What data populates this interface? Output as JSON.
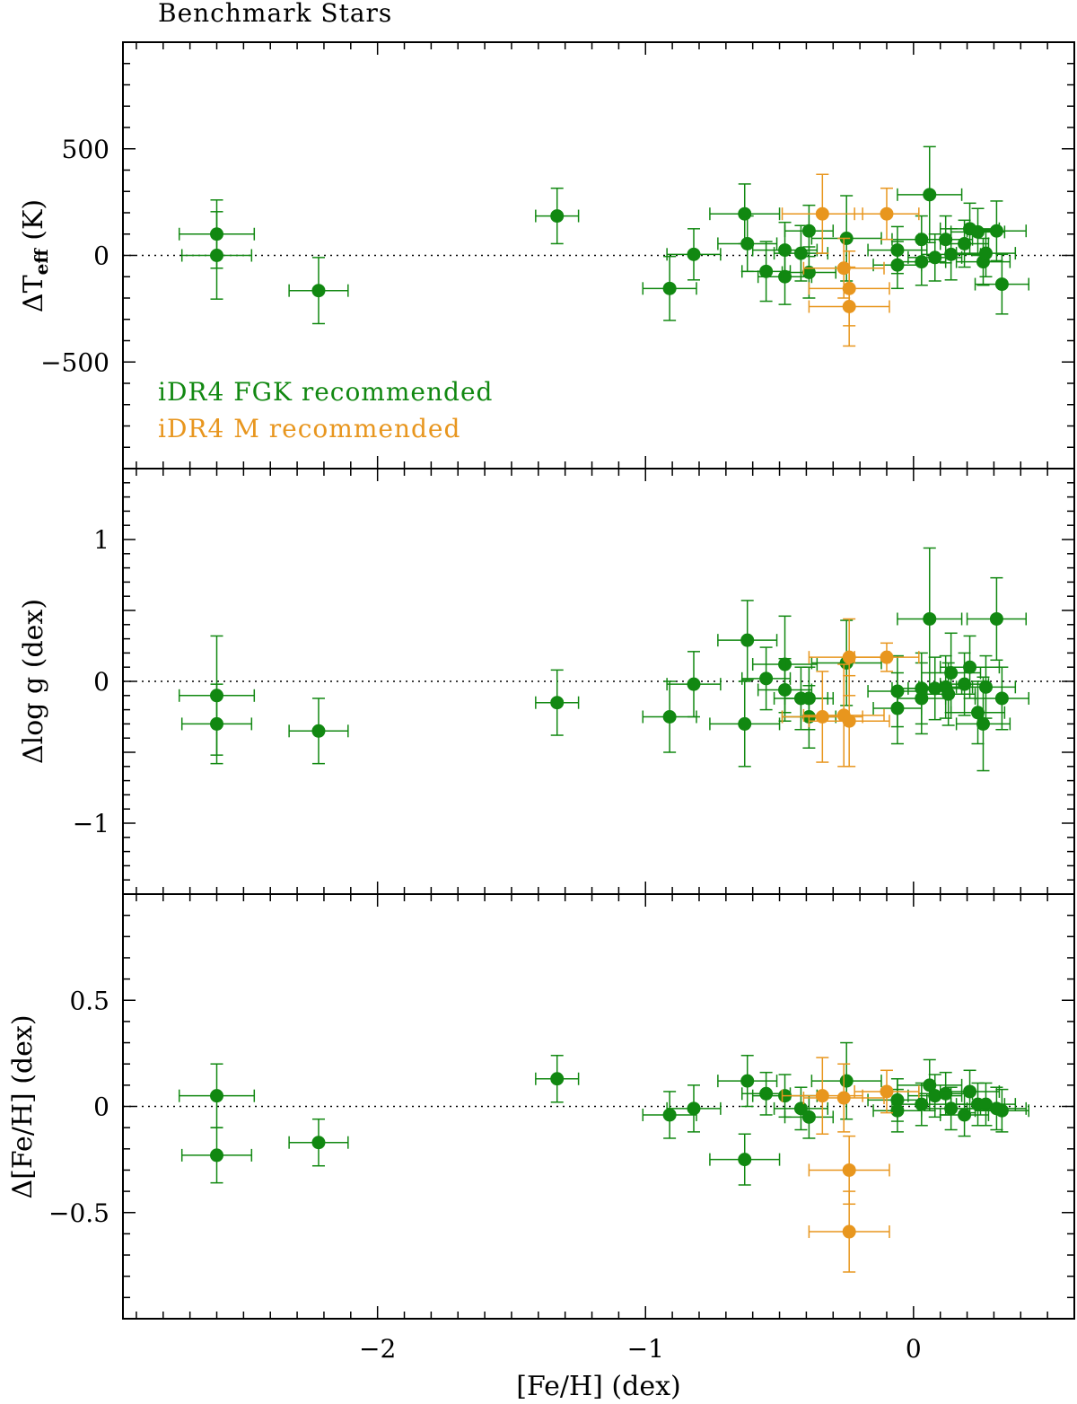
{
  "chart_data": {
    "type": "scatter",
    "title": "Benchmark Stars",
    "xlabel": "[Fe/H] (dex)",
    "xlim": [
      -2.95,
      0.6
    ],
    "x_ticks": [
      -2,
      -1,
      0
    ],
    "x_tick_labels": [
      "−2",
      "−1",
      "0"
    ],
    "colors": {
      "fgk": "#118811",
      "m": "#e8961e",
      "zero_line": "#000000"
    },
    "legend": {
      "placement": "lower-left of top panel",
      "entries": [
        {
          "key": "fgk",
          "label": "iDR4 FGK recommended"
        },
        {
          "key": "m",
          "label": "iDR4 M recommended"
        }
      ]
    },
    "panels": [
      {
        "id": "teff",
        "ylabel_main": "ΔT",
        "ylabel_sub": "eff",
        "ylabel_unit": " (K)",
        "ylim": [
          -1000,
          1000
        ],
        "y_ticks": [
          500,
          0,
          -500
        ],
        "y_tick_labels": [
          "500",
          "0",
          "−500"
        ],
        "series": [
          {
            "name": "iDR4 FGK recommended",
            "key": "fgk",
            "points": [
              [
                -2.6,
                100,
                0.14,
                160
              ],
              [
                -2.6,
                0,
                0.13,
                205
              ],
              [
                -2.22,
                -165,
                0.11,
                155
              ],
              [
                -1.33,
                185,
                0.08,
                130
              ],
              [
                -0.91,
                -155,
                0.1,
                150
              ],
              [
                -0.82,
                5,
                0.1,
                120
              ],
              [
                -0.63,
                195,
                0.13,
                140
              ],
              [
                -0.62,
                55,
                0.11,
                130
              ],
              [
                -0.55,
                -75,
                0.09,
                140
              ],
              [
                -0.48,
                25,
                0.12,
                130
              ],
              [
                -0.48,
                -100,
                0.1,
                130
              ],
              [
                -0.42,
                10,
                0.1,
                130
              ],
              [
                -0.39,
                115,
                0.09,
                120
              ],
              [
                -0.39,
                -80,
                0.1,
                120
              ],
              [
                -0.25,
                80,
                0.13,
                200
              ],
              [
                -0.06,
                25,
                0.11,
                110
              ],
              [
                -0.06,
                -45,
                0.09,
                110
              ],
              [
                0.03,
                75,
                0.11,
                110
              ],
              [
                0.03,
                -30,
                0.09,
                110
              ],
              [
                0.06,
                285,
                0.12,
                225
              ],
              [
                0.08,
                -10,
                0.1,
                110
              ],
              [
                0.12,
                75,
                0.1,
                110
              ],
              [
                0.14,
                5,
                0.11,
                120
              ],
              [
                0.19,
                55,
                0.09,
                110
              ],
              [
                0.21,
                125,
                0.11,
                120
              ],
              [
                0.24,
                110,
                0.1,
                110
              ],
              [
                0.26,
                -30,
                0.1,
                110
              ],
              [
                0.27,
                10,
                0.11,
                110
              ],
              [
                0.31,
                115,
                0.11,
                140
              ],
              [
                0.33,
                -135,
                0.1,
                140
              ]
            ]
          },
          {
            "name": "iDR4 M recommended",
            "key": "m",
            "points": [
              [
                -0.34,
                195,
                0.15,
                185
              ],
              [
                -0.1,
                195,
                0.12,
                120
              ],
              [
                -0.26,
                -60,
                0.15,
                140
              ],
              [
                -0.24,
                -155,
                0.15,
                175
              ],
              [
                -0.24,
                -240,
                0.15,
                185
              ]
            ]
          }
        ]
      },
      {
        "id": "logg",
        "ylabel_main": "Δlog g (dex)",
        "ylim": [
          -1.5,
          1.5
        ],
        "y_ticks": [
          1,
          0,
          -1
        ],
        "y_tick_labels": [
          "1",
          "0",
          "−1"
        ],
        "series": [
          {
            "name": "iDR4 FGK recommended",
            "key": "fgk",
            "points": [
              [
                -2.6,
                -0.1,
                0.14,
                0.42
              ],
              [
                -2.6,
                -0.3,
                0.13,
                0.28
              ],
              [
                -2.22,
                -0.35,
                0.11,
                0.23
              ],
              [
                -1.33,
                -0.15,
                0.08,
                0.23
              ],
              [
                -0.91,
                -0.25,
                0.1,
                0.25
              ],
              [
                -0.82,
                -0.02,
                0.1,
                0.23
              ],
              [
                -0.63,
                -0.3,
                0.13,
                0.3
              ],
              [
                -0.62,
                0.29,
                0.11,
                0.28
              ],
              [
                -0.55,
                0.02,
                0.09,
                0.22
              ],
              [
                -0.48,
                0.12,
                0.12,
                0.34
              ],
              [
                -0.48,
                -0.06,
                0.1,
                0.22
              ],
              [
                -0.42,
                -0.12,
                0.1,
                0.22
              ],
              [
                -0.39,
                -0.12,
                0.09,
                0.22
              ],
              [
                -0.39,
                -0.25,
                0.1,
                0.22
              ],
              [
                -0.25,
                0.13,
                0.13,
                0.3
              ],
              [
                -0.06,
                -0.07,
                0.11,
                0.25
              ],
              [
                -0.06,
                -0.19,
                0.09,
                0.25
              ],
              [
                0.03,
                -0.05,
                0.11,
                0.25
              ],
              [
                0.03,
                -0.12,
                0.09,
                0.25
              ],
              [
                0.06,
                0.44,
                0.12,
                0.5
              ],
              [
                0.08,
                -0.05,
                0.1,
                0.22
              ],
              [
                0.12,
                -0.04,
                0.1,
                0.22
              ],
              [
                0.14,
                0.06,
                0.11,
                0.28
              ],
              [
                0.19,
                -0.02,
                0.09,
                0.22
              ],
              [
                0.21,
                0.1,
                0.11,
                0.22
              ],
              [
                0.24,
                -0.22,
                0.1,
                0.22
              ],
              [
                0.26,
                -0.3,
                0.1,
                0.33
              ],
              [
                0.27,
                -0.04,
                0.11,
                0.22
              ],
              [
                0.31,
                0.44,
                0.11,
                0.29
              ],
              [
                0.33,
                -0.12,
                0.1,
                0.22
              ],
              [
                0.13,
                -0.09,
                0.1,
                0.22
              ]
            ]
          },
          {
            "name": "iDR4 M recommended",
            "key": "m",
            "points": [
              [
                -0.34,
                -0.25,
                0.15,
                0.32
              ],
              [
                -0.26,
                -0.24,
                0.15,
                0.36
              ],
              [
                -0.24,
                -0.28,
                0.15,
                0.32
              ],
              [
                -0.24,
                0.17,
                0.15,
                0.27
              ],
              [
                -0.1,
                0.17,
                0.12,
                0.1
              ]
            ]
          }
        ]
      },
      {
        "id": "feh",
        "ylabel_main": "Δ[Fe/H] (dex)",
        "ylim": [
          -1.0,
          1.0
        ],
        "y_ticks": [
          0.5,
          0,
          -0.5
        ],
        "y_tick_labels": [
          "0.5",
          "0",
          "−0.5"
        ],
        "series": [
          {
            "name": "iDR4 FGK recommended",
            "key": "fgk",
            "points": [
              [
                -2.6,
                0.05,
                0.14,
                0.15
              ],
              [
                -2.6,
                -0.23,
                0.13,
                0.13
              ],
              [
                -2.22,
                -0.17,
                0.11,
                0.11
              ],
              [
                -1.33,
                0.13,
                0.08,
                0.11
              ],
              [
                -0.91,
                -0.04,
                0.1,
                0.11
              ],
              [
                -0.82,
                -0.01,
                0.1,
                0.11
              ],
              [
                -0.63,
                -0.25,
                0.13,
                0.12
              ],
              [
                -0.62,
                0.12,
                0.11,
                0.12
              ],
              [
                -0.55,
                0.06,
                0.09,
                0.1
              ],
              [
                -0.48,
                0.05,
                0.12,
                0.1
              ],
              [
                -0.42,
                -0.01,
                0.1,
                0.1
              ],
              [
                -0.39,
                -0.05,
                0.09,
                0.1
              ],
              [
                -0.25,
                0.12,
                0.13,
                0.18
              ],
              [
                -0.06,
                0.03,
                0.11,
                0.1
              ],
              [
                -0.06,
                -0.02,
                0.09,
                0.1
              ],
              [
                0.03,
                0.01,
                0.11,
                0.1
              ],
              [
                0.06,
                0.1,
                0.12,
                0.12
              ],
              [
                0.08,
                0.05,
                0.1,
                0.1
              ],
              [
                0.12,
                0.06,
                0.1,
                0.1
              ],
              [
                0.14,
                -0.01,
                0.11,
                0.1
              ],
              [
                0.19,
                -0.04,
                0.09,
                0.1
              ],
              [
                0.21,
                0.07,
                0.11,
                0.1
              ],
              [
                0.24,
                0.01,
                0.1,
                0.1
              ],
              [
                0.27,
                0.01,
                0.11,
                0.1
              ],
              [
                0.31,
                -0.01,
                0.11,
                0.1
              ],
              [
                0.33,
                -0.02,
                0.1,
                0.1
              ]
            ]
          },
          {
            "name": "iDR4 M recommended",
            "key": "m",
            "points": [
              [
                -0.34,
                0.05,
                0.15,
                0.18
              ],
              [
                -0.26,
                0.04,
                0.15,
                0.16
              ],
              [
                -0.1,
                0.07,
                0.12,
                0.1
              ],
              [
                -0.24,
                -0.3,
                0.15,
                0.16
              ],
              [
                -0.24,
                -0.59,
                0.15,
                0.19
              ]
            ]
          }
        ]
      }
    ]
  }
}
